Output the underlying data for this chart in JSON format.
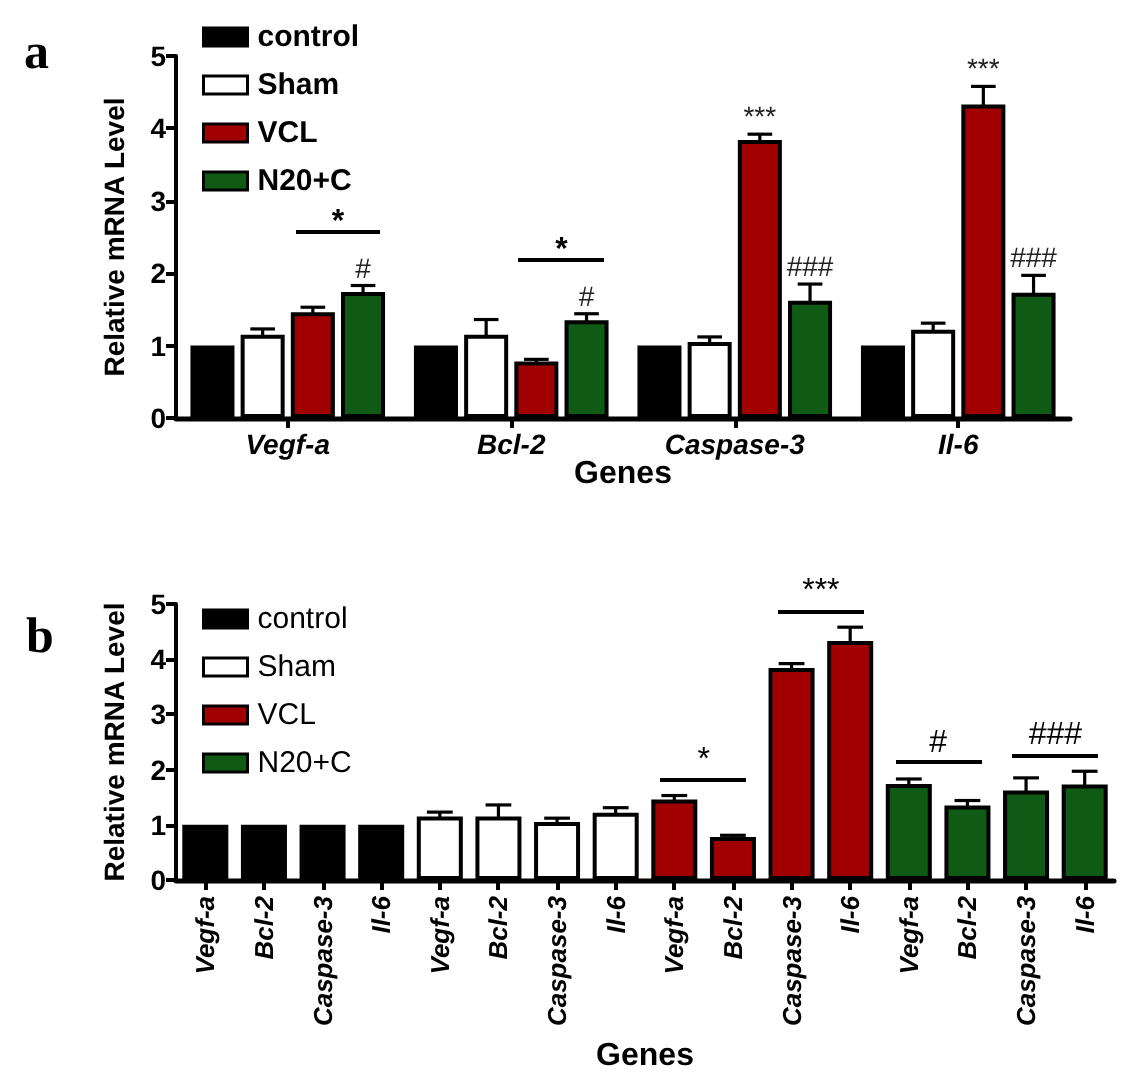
{
  "chart_data": [
    {
      "type": "bar",
      "title": "a",
      "categories": [
        "Vegf-a",
        "Bcl-2",
        "Caspase-3",
        "Il-6"
      ],
      "xlabel": "Genes",
      "ylabel": "Relative mRNA Level",
      "ylim": [
        0,
        5
      ],
      "yticks": [
        0,
        1,
        2,
        3,
        4,
        5
      ],
      "legend": "top left",
      "series": [
        {
          "name": "control",
          "color": "#000000",
          "values": [
            1,
            1,
            1,
            1
          ]
        },
        {
          "name": "Sham",
          "color": "#ffffff",
          "values": [
            1.15,
            1.15,
            1.05,
            1.22
          ],
          "errors": [
            0.08,
            0.21,
            0.07,
            0.09
          ]
        },
        {
          "name": "VCL",
          "color": "#a00000",
          "values": [
            1.46,
            0.78,
            3.84,
            4.33
          ],
          "errors": [
            0.07,
            0.03,
            0.08,
            0.25
          ],
          "value_labels": [
            null,
            null,
            "***",
            "***"
          ]
        },
        {
          "name": "N20+C",
          "color": "#0f5a14",
          "values": [
            1.74,
            1.35,
            1.62,
            1.73
          ],
          "errors": [
            0.09,
            0.09,
            0.23,
            0.24
          ],
          "value_labels": [
            "#",
            "#",
            "###",
            "###"
          ]
        }
      ],
      "annotations": [
        "*",
        "*"
      ]
    },
    {
      "type": "bar",
      "title": "b",
      "stacked": true,
      "categories": [
        "Vegf-a",
        "Bcl-2",
        "Caspase-3",
        "Il-6",
        "Vegf-a",
        "Bcl-2",
        "Caspase-3",
        "Il-6",
        "Vegf-a",
        "Bcl-2",
        "Caspase-3",
        "Il-6",
        "Vegf-a",
        "Bcl-2",
        "Caspase-3",
        "Il-6"
      ],
      "xlabel": "Genes",
      "ylabel": "Relative mRNA Level",
      "ylim": [
        0,
        5
      ],
      "yticks": [
        0,
        1,
        2,
        3,
        4,
        5
      ],
      "legend": "top left",
      "series": [
        {
          "name": "control",
          "color": "#000000",
          "values": [
            1,
            1,
            1,
            1,
            null,
            null,
            null,
            null,
            null,
            null,
            null,
            null,
            null,
            null,
            null,
            null
          ]
        },
        {
          "name": "Sham",
          "color": "#ffffff",
          "values": [
            null,
            null,
            null,
            null,
            1.15,
            1.15,
            1.05,
            1.22,
            null,
            null,
            null,
            null,
            null,
            null,
            null,
            null
          ],
          "errors": [
            null,
            null,
            null,
            null,
            0.08,
            0.21,
            0.07,
            0.09,
            null,
            null,
            null,
            null,
            null,
            null,
            null,
            null
          ]
        },
        {
          "name": "VCL",
          "color": "#a00000",
          "values": [
            null,
            null,
            null,
            null,
            null,
            null,
            null,
            null,
            1.46,
            0.78,
            3.84,
            4.33,
            null,
            null,
            null,
            null
          ],
          "errors": [
            null,
            null,
            null,
            null,
            null,
            null,
            null,
            null,
            0.07,
            0.03,
            0.08,
            0.25,
            null,
            null,
            null,
            null
          ]
        },
        {
          "name": "N20+C",
          "color": "#0f5a14",
          "values": [
            null,
            null,
            null,
            null,
            null,
            null,
            null,
            null,
            null,
            null,
            null,
            null,
            1.74,
            1.35,
            1.62,
            1.73
          ],
          "errors": [
            null,
            null,
            null,
            null,
            null,
            null,
            null,
            null,
            null,
            null,
            null,
            null,
            0.09,
            0.09,
            0.23,
            0.24
          ]
        }
      ],
      "annotations": [
        "*",
        "***",
        "#",
        "###"
      ]
    }
  ]
}
